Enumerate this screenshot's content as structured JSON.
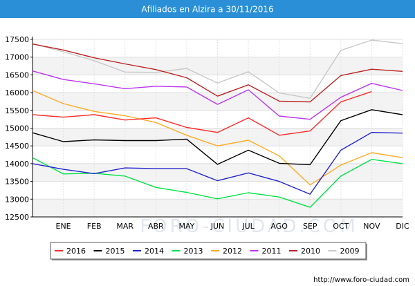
{
  "chart_data": {
    "type": "line",
    "title": "Afiliados en Alzira a 30/11/2016",
    "categories": [
      "",
      "ENE",
      "FEB",
      "MAR",
      "ABR",
      "MAY",
      "JUN",
      "JUL",
      "AGO",
      "SEP",
      "OCT",
      "NOV",
      "DIC"
    ],
    "yticks": [
      12500,
      13000,
      13500,
      14000,
      14500,
      15000,
      15500,
      16000,
      16500,
      17000,
      17500
    ],
    "ylim": [
      12500,
      17500
    ],
    "grid": true,
    "legend_position": "bottom",
    "series": [
      {
        "name": "2016",
        "color": "#ff2a2a",
        "values": [
          15380,
          15310,
          15380,
          15230,
          15290,
          15020,
          14880,
          15290,
          14800,
          14920,
          15740,
          16030,
          null
        ]
      },
      {
        "name": "2015",
        "color": "#000000",
        "values": [
          14870,
          14620,
          14670,
          14650,
          14650,
          14690,
          13980,
          14380,
          14010,
          13970,
          15210,
          15520,
          15380
        ]
      },
      {
        "name": "2014",
        "color": "#2222cc",
        "values": [
          14000,
          13840,
          13720,
          13880,
          13860,
          13860,
          13520,
          13740,
          13500,
          13140,
          14380,
          14880,
          14860
        ]
      },
      {
        "name": "2013",
        "color": "#00e046",
        "values": [
          14170,
          13710,
          13730,
          13650,
          13330,
          13190,
          13010,
          13180,
          13060,
          12770,
          13650,
          14120,
          14000
        ]
      },
      {
        "name": "2012",
        "color": "#ffaa22",
        "values": [
          16060,
          15690,
          15470,
          15350,
          15160,
          14800,
          14500,
          14660,
          14220,
          13400,
          13960,
          14310,
          14170
        ]
      },
      {
        "name": "2011",
        "color": "#bb33ee",
        "values": [
          16610,
          16370,
          16250,
          16110,
          16180,
          16160,
          15670,
          16080,
          15340,
          15250,
          15870,
          16260,
          16060
        ]
      },
      {
        "name": "2010",
        "color": "#bb2222",
        "values": [
          17370,
          17200,
          16980,
          16810,
          16650,
          16420,
          15900,
          16220,
          15760,
          15740,
          16480,
          16660,
          16600
        ]
      },
      {
        "name": "2009",
        "color": "#c8c8c8",
        "values": [
          17380,
          17150,
          16900,
          16580,
          16570,
          16680,
          16270,
          16590,
          15990,
          15840,
          17190,
          17480,
          17380
        ]
      }
    ]
  },
  "watermark": "FORO-CIUDAD.COM",
  "footer": "http://www.foro-ciudad.com"
}
